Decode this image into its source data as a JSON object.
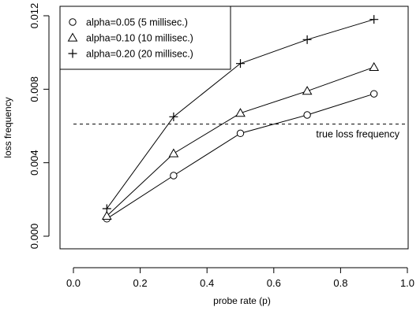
{
  "chart_data": {
    "type": "line",
    "x": [
      0.1,
      0.3,
      0.5,
      0.7,
      0.9
    ],
    "series": [
      {
        "name": "alpha=0.05 (5 millisec.)",
        "marker": "circle",
        "values": [
          0.00095,
          0.0033,
          0.0056,
          0.0066,
          0.00775
        ]
      },
      {
        "name": "alpha=0.10 (10 millisec.)",
        "marker": "triangle",
        "values": [
          0.0011,
          0.0045,
          0.0067,
          0.0079,
          0.0092
        ]
      },
      {
        "name": "alpha=0.20 (20 millisec.)",
        "marker": "plus",
        "values": [
          0.0015,
          0.0065,
          0.0094,
          0.0107,
          0.0118
        ]
      }
    ],
    "reference_line": {
      "label": "true loss frequency",
      "value": 0.0061,
      "style": "dashed"
    },
    "xlabel": "probe rate (p)",
    "ylabel": "loss frequency",
    "xlim": [
      0.0,
      1.0
    ],
    "ylim": [
      0.0,
      0.012
    ],
    "xticks": [
      0.0,
      0.2,
      0.4,
      0.6,
      0.8,
      1.0
    ],
    "xtick_labels": [
      "0.0",
      "0.2",
      "0.4",
      "0.6",
      "0.8",
      "1.0"
    ],
    "yticks": [
      0.0,
      0.004,
      0.008,
      0.012
    ],
    "ytick_labels": [
      "0.000",
      "0.004",
      "0.008",
      "0.012"
    ],
    "legend_position": "top-left",
    "grid": false,
    "colors": {
      "ink": "#000000",
      "background": "#ffffff"
    }
  }
}
